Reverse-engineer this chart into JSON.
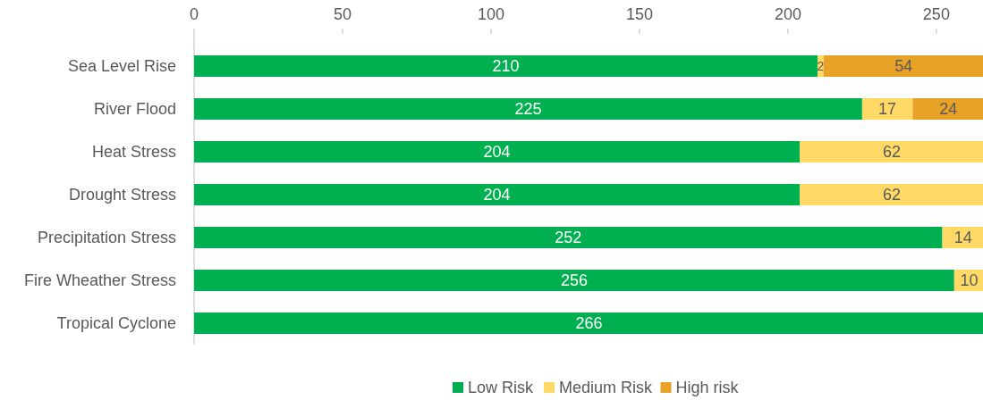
{
  "chart_data": {
    "type": "bar",
    "orientation": "horizontal",
    "stacked": true,
    "categories": [
      "Sea Level Rise",
      "River Flood",
      "Heat Stress",
      "Drought Stress",
      "Precipitation Stress",
      "Fire Wheather Stress",
      "Tropical Cyclone"
    ],
    "series": [
      {
        "name": "Low Risk",
        "color": "#00b050",
        "values": [
          210,
          225,
          204,
          204,
          252,
          256,
          266
        ]
      },
      {
        "name": "Medium Risk",
        "color": "#ffd966",
        "values": [
          2,
          17,
          62,
          62,
          14,
          10,
          null
        ]
      },
      {
        "name": "High risk",
        "color": "#e9a228",
        "values": [
          54,
          24,
          null,
          null,
          null,
          null,
          null
        ]
      }
    ],
    "xlim": [
      0,
      266
    ],
    "xticks": [
      0,
      50,
      100,
      150,
      200,
      250
    ],
    "data_labels": true,
    "legend": "bottom",
    "grid": false
  }
}
